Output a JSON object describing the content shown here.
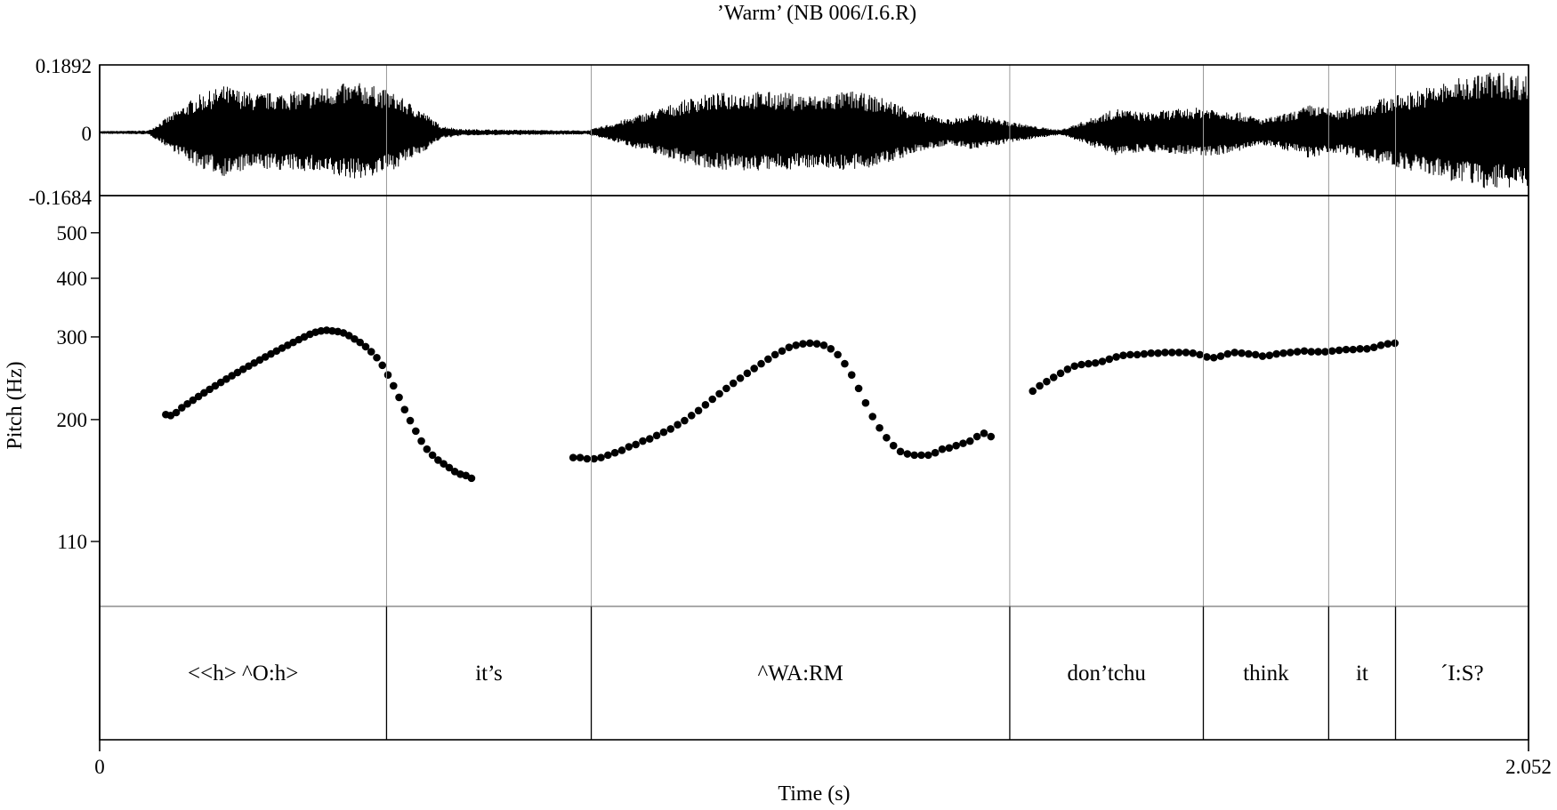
{
  "chart_data": {
    "type": "scatter",
    "title": "’Warm’ (NB 006/I.6.R)",
    "waveform": {
      "ymax_label": "0.1892",
      "zero_label": "0",
      "ymin_label": "-0.1684",
      "ylim": [
        -0.1684,
        0.1892
      ]
    },
    "pitch": {
      "ylabel": "Pitch (Hz)",
      "yticks": [
        110,
        200,
        300,
        400,
        500
      ],
      "ylim": [
        80,
        600
      ],
      "yscale": "log",
      "series": [
        {
          "points": [
            [
              0.095,
              205
            ],
            [
              0.102,
              204
            ],
            [
              0.11,
              207
            ],
            [
              0.118,
              212
            ],
            [
              0.126,
              216
            ],
            [
              0.134,
              220
            ],
            [
              0.142,
              224
            ],
            [
              0.15,
              228
            ],
            [
              0.158,
              232
            ],
            [
              0.166,
              236
            ],
            [
              0.174,
              240
            ],
            [
              0.182,
              244
            ],
            [
              0.19,
              248
            ],
            [
              0.198,
              252
            ],
            [
              0.206,
              256
            ],
            [
              0.214,
              260
            ],
            [
              0.222,
              264
            ],
            [
              0.23,
              268
            ],
            [
              0.238,
              272
            ],
            [
              0.246,
              276
            ],
            [
              0.254,
              280
            ],
            [
              0.262,
              284
            ],
            [
              0.27,
              288
            ],
            [
              0.278,
              292
            ],
            [
              0.286,
              296
            ],
            [
              0.294,
              300
            ],
            [
              0.302,
              304
            ],
            [
              0.31,
              307
            ],
            [
              0.318,
              309
            ],
            [
              0.326,
              310
            ],
            [
              0.334,
              309
            ],
            [
              0.342,
              308
            ],
            [
              0.35,
              306
            ],
            [
              0.358,
              302
            ],
            [
              0.366,
              297
            ],
            [
              0.374,
              292
            ],
            [
              0.382,
              286
            ],
            [
              0.39,
              279
            ],
            [
              0.398,
              271
            ],
            [
              0.406,
              261
            ],
            [
              0.414,
              249
            ],
            [
              0.422,
              236
            ],
            [
              0.43,
              223
            ],
            [
              0.438,
              210
            ],
            [
              0.446,
              199
            ],
            [
              0.454,
              189
            ],
            [
              0.462,
              180
            ],
            [
              0.47,
              173
            ],
            [
              0.478,
              168
            ],
            [
              0.486,
              164
            ],
            [
              0.494,
              161
            ],
            [
              0.502,
              158
            ],
            [
              0.51,
              155
            ],
            [
              0.518,
              153
            ],
            [
              0.526,
              152
            ],
            [
              0.534,
              150
            ]
          ]
        },
        {
          "points": [
            [
              0.68,
              166
            ],
            [
              0.69,
              166
            ],
            [
              0.7,
              165
            ],
            [
              0.71,
              165
            ],
            [
              0.72,
              166
            ],
            [
              0.73,
              168
            ],
            [
              0.74,
              170
            ],
            [
              0.75,
              172
            ],
            [
              0.76,
              175
            ],
            [
              0.77,
              177
            ],
            [
              0.78,
              180
            ],
            [
              0.79,
              182
            ],
            [
              0.8,
              185
            ],
            [
              0.81,
              188
            ],
            [
              0.82,
              191
            ],
            [
              0.83,
              195
            ],
            [
              0.84,
              199
            ],
            [
              0.85,
              204
            ],
            [
              0.86,
              209
            ],
            [
              0.87,
              215
            ],
            [
              0.88,
              221
            ],
            [
              0.89,
              227
            ],
            [
              0.9,
              233
            ],
            [
              0.91,
              239
            ],
            [
              0.92,
              245
            ],
            [
              0.93,
              251
            ],
            [
              0.94,
              257
            ],
            [
              0.95,
              263
            ],
            [
              0.96,
              269
            ],
            [
              0.97,
              275
            ],
            [
              0.98,
              280
            ],
            [
              0.99,
              285
            ],
            [
              1.0,
              288
            ],
            [
              1.01,
              290
            ],
            [
              1.02,
              291
            ],
            [
              1.03,
              290
            ],
            [
              1.04,
              288
            ],
            [
              1.05,
              283
            ],
            [
              1.06,
              275
            ],
            [
              1.07,
              263
            ],
            [
              1.08,
              249
            ],
            [
              1.09,
              233
            ],
            [
              1.1,
              217
            ],
            [
              1.11,
              203
            ],
            [
              1.12,
              192
            ],
            [
              1.13,
              183
            ],
            [
              1.14,
              176
            ],
            [
              1.15,
              171
            ],
            [
              1.16,
              169
            ],
            [
              1.17,
              168
            ],
            [
              1.18,
              168
            ],
            [
              1.19,
              168
            ],
            [
              1.2,
              170
            ],
            [
              1.21,
              173
            ],
            [
              1.22,
              174
            ],
            [
              1.23,
              176
            ],
            [
              1.24,
              178
            ],
            [
              1.25,
              180
            ],
            [
              1.26,
              184
            ],
            [
              1.27,
              187
            ],
            [
              1.28,
              184
            ]
          ]
        },
        {
          "points": [
            [
              1.34,
              230
            ],
            [
              1.35,
              236
            ],
            [
              1.36,
              241
            ],
            [
              1.37,
              246
            ],
            [
              1.38,
              251
            ],
            [
              1.39,
              256
            ],
            [
              1.4,
              260
            ],
            [
              1.41,
              262
            ],
            [
              1.42,
              263
            ],
            [
              1.43,
              264
            ],
            [
              1.44,
              266
            ],
            [
              1.45,
              269
            ],
            [
              1.46,
              272
            ],
            [
              1.47,
              274
            ],
            [
              1.48,
              275
            ],
            [
              1.49,
              275
            ],
            [
              1.5,
              276
            ],
            [
              1.51,
              277
            ],
            [
              1.52,
              277
            ],
            [
              1.53,
              278
            ],
            [
              1.54,
              278
            ],
            [
              1.55,
              278
            ],
            [
              1.56,
              278
            ],
            [
              1.57,
              277
            ],
            [
              1.58,
              275
            ],
            [
              1.59,
              272
            ],
            [
              1.6,
              271
            ],
            [
              1.61,
              273
            ],
            [
              1.62,
              276
            ],
            [
              1.63,
              278
            ],
            [
              1.64,
              277
            ],
            [
              1.65,
              276
            ],
            [
              1.66,
              275
            ],
            [
              1.67,
              273
            ],
            [
              1.68,
              274
            ],
            [
              1.69,
              276
            ],
            [
              1.7,
              277
            ],
            [
              1.71,
              278
            ],
            [
              1.72,
              279
            ],
            [
              1.73,
              280
            ],
            [
              1.74,
              279
            ],
            [
              1.75,
              279
            ],
            [
              1.76,
              279
            ],
            [
              1.77,
              280
            ],
            [
              1.78,
              281
            ],
            [
              1.79,
              282
            ],
            [
              1.8,
              282
            ],
            [
              1.81,
              283
            ],
            [
              1.82,
              283
            ],
            [
              1.83,
              285
            ],
            [
              1.84,
              288
            ],
            [
              1.85,
              290
            ],
            [
              1.86,
              291
            ]
          ]
        }
      ]
    },
    "tier": {
      "intervals": [
        {
          "label": "<<h> ^O:h>",
          "start": 0,
          "end": 0.412
        },
        {
          "label": "it’s",
          "start": 0.412,
          "end": 0.706
        },
        {
          "label": "^WA:RM",
          "start": 0.706,
          "end": 1.307
        },
        {
          "label": "don’tchu",
          "start": 1.307,
          "end": 1.585
        },
        {
          "label": "think",
          "start": 1.585,
          "end": 1.765
        },
        {
          "label": "it",
          "start": 1.765,
          "end": 1.861
        },
        {
          "label": "´I:S?",
          "start": 1.861,
          "end": 2.052
        }
      ]
    },
    "x": {
      "xlabel": "Time (s)",
      "xmin_label": "0",
      "xmax_label": "2.052",
      "xlim": [
        0,
        2.052
      ]
    },
    "grid": false,
    "legend": "none"
  }
}
